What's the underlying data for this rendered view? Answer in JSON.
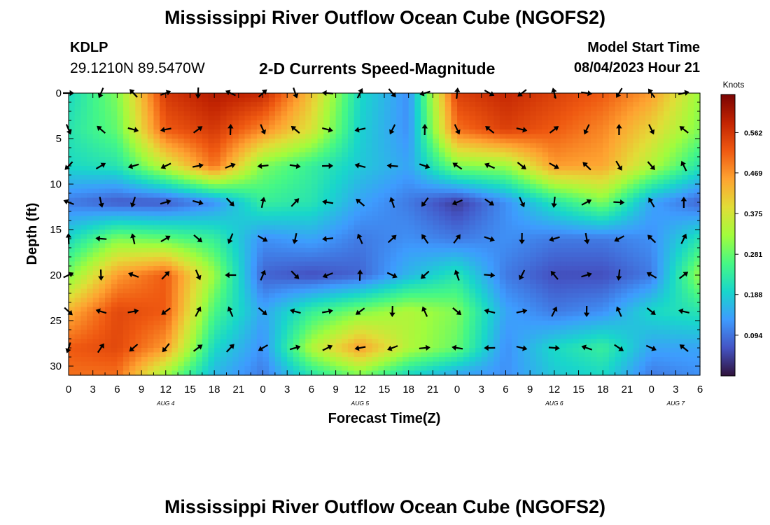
{
  "header": {
    "title": "Mississippi River Outflow Ocean Cube (NGOFS2)",
    "station_id": "KDLP",
    "station_coords": "29.1210N  89.5470W",
    "subtitle": "2-D Currents Speed-Magnitude",
    "model_start_label": "Model Start Time",
    "model_start_value": "08/04/2023 Hour 21"
  },
  "footer": {
    "title": "Mississippi River Outflow Ocean Cube (NGOFS2)"
  },
  "chart_data": {
    "type": "heatmap",
    "title": "2-D Currents Speed-Magnitude",
    "xlabel": "Forecast Time(Z)",
    "ylabel": "Depth (ft)",
    "x_range_hours": [
      0,
      78
    ],
    "ylim": [
      0,
      31
    ],
    "x_tick_labels": [
      "0",
      "3",
      "6",
      "9",
      "12",
      "15",
      "18",
      "21",
      "0",
      "3",
      "6",
      "9",
      "12",
      "15",
      "18",
      "21",
      "0",
      "3",
      "6",
      "9",
      "12",
      "15",
      "18",
      "21",
      "0",
      "3",
      "6"
    ],
    "y_tick_labels": [
      "0",
      "5",
      "10",
      "15",
      "20",
      "25",
      "30"
    ],
    "y_tick_values": [
      0,
      5,
      10,
      15,
      20,
      25,
      30
    ],
    "date_labels": [
      {
        "text": "AUG 4",
        "hour": 12
      },
      {
        "text": "AUG 5",
        "hour": 36
      },
      {
        "text": "AUG 6",
        "hour": 60
      },
      {
        "text": "AUG 7",
        "hour": 75
      }
    ],
    "colorbar": {
      "label": "Knots",
      "range": [
        0,
        0.65
      ],
      "tick_labels": [
        "0.562",
        "0.469",
        "0.375",
        "0.281",
        "0.188",
        "0.094"
      ],
      "tick_values": [
        0.562,
        0.469,
        0.375,
        0.281,
        0.188,
        0.094
      ],
      "colors": [
        "#30123b",
        "#4454c4",
        "#3e9bfe",
        "#18d6cb",
        "#46f884",
        "#a2fc3c",
        "#e1dd37",
        "#fea331",
        "#ef5911",
        "#c22402",
        "#7a0403"
      ]
    },
    "arrow_columns_hours": [
      0,
      4,
      8,
      12,
      16,
      20,
      24,
      28,
      32,
      36,
      40,
      44,
      48,
      52,
      56,
      60,
      64,
      68,
      72,
      76
    ],
    "arrow_rows_depth": [
      0,
      4,
      8,
      12,
      16,
      20,
      24,
      28
    ],
    "speed_grid_note": "speed (knots), rows = depth 0,4,8,12,16,20,24,28,31 ft; cols = hours 0..78 step 6",
    "speed_grid": [
      [
        0.2,
        0.3,
        0.56,
        0.6,
        0.58,
        0.42,
        0.2,
        0.12,
        0.55,
        0.58,
        0.55,
        0.52,
        0.46,
        0.32
      ],
      [
        0.22,
        0.28,
        0.52,
        0.56,
        0.48,
        0.38,
        0.19,
        0.12,
        0.5,
        0.55,
        0.52,
        0.48,
        0.4,
        0.3
      ],
      [
        0.2,
        0.22,
        0.36,
        0.5,
        0.3,
        0.24,
        0.18,
        0.14,
        0.3,
        0.32,
        0.46,
        0.45,
        0.34,
        0.22
      ],
      [
        0.1,
        0.07,
        0.07,
        0.12,
        0.24,
        0.22,
        0.14,
        0.1,
        0.04,
        0.12,
        0.22,
        0.3,
        0.14,
        0.08
      ],
      [
        0.2,
        0.3,
        0.28,
        0.24,
        0.12,
        0.14,
        0.1,
        0.12,
        0.1,
        0.12,
        0.1,
        0.1,
        0.12,
        0.22
      ],
      [
        0.3,
        0.46,
        0.52,
        0.32,
        0.08,
        0.06,
        0.08,
        0.16,
        0.22,
        0.1,
        0.06,
        0.06,
        0.1,
        0.32
      ],
      [
        0.44,
        0.54,
        0.52,
        0.26,
        0.14,
        0.24,
        0.3,
        0.34,
        0.3,
        0.14,
        0.1,
        0.12,
        0.2,
        0.22
      ],
      [
        0.52,
        0.54,
        0.46,
        0.2,
        0.12,
        0.34,
        0.46,
        0.34,
        0.28,
        0.12,
        0.2,
        0.24,
        0.14,
        0.14
      ],
      [
        0.5,
        0.5,
        0.32,
        0.16,
        0.1,
        0.22,
        0.3,
        0.2,
        0.14,
        0.12,
        0.18,
        0.2,
        0.1,
        0.12
      ]
    ]
  }
}
